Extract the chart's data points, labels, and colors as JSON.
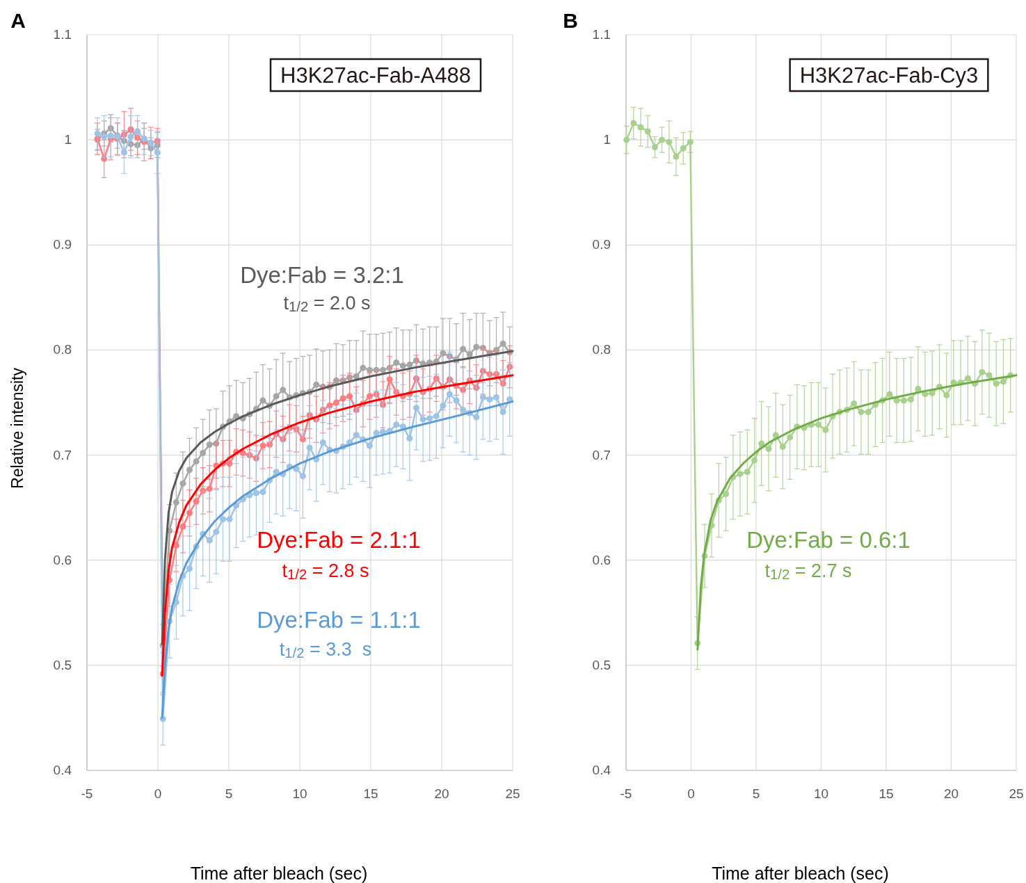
{
  "chart_data": [
    {
      "type": "line",
      "title": "H3K27ac-Fab-A488",
      "xlabel": "Time after bleach (sec)",
      "ylabel": "Relative intensity",
      "annotations": [
        "A",
        "t$_{1/2}$ = 2.0 s",
        "t$_{1/2}$ = 2.8 s",
        "t$_{1/2}$ = 3.3  s"
      ],
      "xlim": [
        -5,
        25
      ],
      "xticks": [
        -5,
        0,
        5,
        10,
        15,
        20,
        25
      ],
      "ylim": [
        0.4,
        1.1
      ],
      "yticks": [
        0.4,
        0.5,
        0.6,
        0.7,
        0.8,
        0.9,
        1,
        1.1
      ],
      "grid": true,
      "series": [
        {
          "color": "#a6a6a6",
          "marker": "circle",
          "x": [
            -4.26,
            -3.79,
            -3.32,
            -2.85,
            -2.38,
            -1.91,
            -1.44,
            -0.97,
            -0.5,
            -0.03,
            0.35,
            0.82,
            1.29,
            1.76,
            2.23,
            2.7,
            3.17,
            3.64,
            4.11,
            4.58,
            5.05,
            5.52,
            5.99,
            6.46,
            6.93,
            7.4,
            7.87,
            8.34,
            8.81,
            9.28,
            9.75,
            10.22,
            10.69,
            11.16,
            11.63,
            12.1,
            12.57,
            13.04,
            13.51,
            13.98,
            14.45,
            14.92,
            15.39,
            15.86,
            16.33,
            16.8,
            17.27,
            17.74,
            18.21,
            18.68,
            19.15,
            19.62,
            20.09,
            20.56,
            21.03,
            21.5,
            21.97,
            22.44,
            22.91,
            23.38,
            23.85,
            24.32,
            24.79
          ],
          "values": [
            1.0,
            1.006,
            1.011,
            1.004,
            0.999,
            0.996,
            0.995,
            1.001,
            0.992,
            0.995,
            0.519,
            0.628,
            0.655,
            0.673,
            0.686,
            0.694,
            0.702,
            0.71,
            0.711,
            0.727,
            0.732,
            0.737,
            0.735,
            0.739,
            0.744,
            0.752,
            0.747,
            0.756,
            0.762,
            0.755,
            0.757,
            0.759,
            0.76,
            0.767,
            0.765,
            0.765,
            0.771,
            0.771,
            0.774,
            0.775,
            0.783,
            0.781,
            0.781,
            0.781,
            0.783,
            0.788,
            0.785,
            0.786,
            0.79,
            0.787,
            0.788,
            0.789,
            0.797,
            0.794,
            0.791,
            0.801,
            0.796,
            0.803,
            0.802,
            0.797,
            0.8,
            0.806,
            0.798
          ],
          "errors": [
            0.01,
            0.012,
            0.013,
            0.012,
            0.01,
            0.011,
            0.012,
            0.01,
            0.01,
            0.012,
            0.02,
            0.025,
            0.028,
            0.03,
            0.03,
            0.032,
            0.032,
            0.033,
            0.033,
            0.034,
            0.034,
            0.034,
            0.034,
            0.034,
            0.035,
            0.034,
            0.035,
            0.035,
            0.035,
            0.034,
            0.035,
            0.035,
            0.035,
            0.034,
            0.034,
            0.035,
            0.035,
            0.034,
            0.035,
            0.034,
            0.035,
            0.034,
            0.034,
            0.035,
            0.034,
            0.033,
            0.034,
            0.033,
            0.034,
            0.033,
            0.034,
            0.033,
            0.033,
            0.036,
            0.034,
            0.034,
            0.033,
            0.032,
            0.033,
            0.031,
            0.031,
            0.03,
            0.024
          ]
        },
        {
          "color": "#ff7c80",
          "marker": "circle",
          "x": [
            -4.26,
            -3.79,
            -3.32,
            -2.85,
            -2.38,
            -1.91,
            -1.44,
            -0.97,
            -0.5,
            -0.03,
            0.35,
            0.82,
            1.29,
            1.76,
            2.23,
            2.7,
            3.17,
            3.64,
            4.11,
            4.58,
            5.05,
            5.52,
            5.99,
            6.46,
            6.93,
            7.4,
            7.87,
            8.34,
            8.81,
            9.28,
            9.75,
            10.22,
            10.69,
            11.16,
            11.63,
            12.1,
            12.57,
            13.04,
            13.51,
            13.98,
            14.45,
            14.92,
            15.39,
            15.86,
            16.33,
            16.8,
            17.27,
            17.74,
            18.21,
            18.68,
            19.15,
            19.62,
            20.09,
            20.56,
            21.03,
            21.5,
            21.97,
            22.44,
            22.91,
            23.38,
            23.85,
            24.32,
            24.79
          ],
          "values": [
            1.001,
            0.982,
            1.001,
            1.001,
            1.005,
            1.01,
            1.002,
            0.998,
            0.997,
            0.999,
            0.492,
            0.581,
            0.614,
            0.632,
            0.645,
            0.656,
            0.666,
            0.668,
            0.69,
            0.692,
            0.692,
            0.703,
            0.702,
            0.7,
            0.697,
            0.709,
            0.71,
            0.72,
            0.715,
            0.726,
            0.725,
            0.715,
            0.738,
            0.734,
            0.743,
            0.747,
            0.75,
            0.754,
            0.756,
            0.743,
            0.749,
            0.756,
            0.758,
            0.748,
            0.772,
            0.76,
            0.756,
            0.758,
            0.773,
            0.76,
            0.763,
            0.773,
            0.765,
            0.772,
            0.766,
            0.762,
            0.771,
            0.764,
            0.78,
            0.777,
            0.777,
            0.768,
            0.784
          ],
          "errors": [
            0.015,
            0.018,
            0.02,
            0.015,
            0.022,
            0.02,
            0.016,
            0.018,
            0.015,
            0.012,
            0.02,
            0.025,
            0.025,
            0.025,
            0.022,
            0.022,
            0.022,
            0.022,
            0.022,
            0.022,
            0.022,
            0.022,
            0.022,
            0.022,
            0.022,
            0.022,
            0.022,
            0.022,
            0.022,
            0.022,
            0.022,
            0.022,
            0.022,
            0.022,
            0.022,
            0.022,
            0.022,
            0.022,
            0.022,
            0.022,
            0.022,
            0.022,
            0.022,
            0.022,
            0.022,
            0.022,
            0.022,
            0.022,
            0.022,
            0.022,
            0.022,
            0.022,
            0.022,
            0.022,
            0.022,
            0.022,
            0.022,
            0.022,
            0.022,
            0.022,
            0.022,
            0.022,
            0.02
          ]
        },
        {
          "color": "#9dc3e6",
          "marker": "circle",
          "x": [
            -4.26,
            -3.79,
            -3.32,
            -2.85,
            -2.38,
            -1.91,
            -1.44,
            -0.97,
            -0.5,
            -0.03,
            0.35,
            0.82,
            1.29,
            1.76,
            2.23,
            2.7,
            3.17,
            3.64,
            4.11,
            4.58,
            5.05,
            5.52,
            5.99,
            6.46,
            6.93,
            7.4,
            7.87,
            8.34,
            8.81,
            9.28,
            9.75,
            10.22,
            10.69,
            11.16,
            11.63,
            12.1,
            12.57,
            13.04,
            13.51,
            13.98,
            14.45,
            14.92,
            15.39,
            15.86,
            16.33,
            16.8,
            17.27,
            17.74,
            18.21,
            18.68,
            19.15,
            19.62,
            20.09,
            20.56,
            21.03,
            21.5,
            21.97,
            22.44,
            22.91,
            23.38,
            23.85,
            24.32,
            24.79
          ],
          "values": [
            1.006,
            1.003,
            1.004,
            1.003,
            0.988,
            1.003,
            1.008,
            1.001,
            0.997,
            0.988,
            0.449,
            0.542,
            0.56,
            0.585,
            0.592,
            0.613,
            0.625,
            0.619,
            0.627,
            0.639,
            0.639,
            0.652,
            0.658,
            0.662,
            0.664,
            0.665,
            0.676,
            0.684,
            0.682,
            0.689,
            0.687,
            0.68,
            0.707,
            0.696,
            0.712,
            0.705,
            0.704,
            0.708,
            0.712,
            0.719,
            0.715,
            0.709,
            0.721,
            0.722,
            0.723,
            0.729,
            0.727,
            0.716,
            0.745,
            0.734,
            0.735,
            0.737,
            0.747,
            0.758,
            0.752,
            0.743,
            0.74,
            0.736,
            0.755,
            0.753,
            0.755,
            0.741,
            0.753
          ],
          "errors": [
            0.015,
            0.02,
            0.02,
            0.018,
            0.02,
            0.02,
            0.015,
            0.015,
            0.012,
            0.02,
            0.025,
            0.035,
            0.035,
            0.038,
            0.04,
            0.04,
            0.04,
            0.04,
            0.04,
            0.04,
            0.04,
            0.04,
            0.04,
            0.04,
            0.04,
            0.04,
            0.04,
            0.04,
            0.04,
            0.04,
            0.04,
            0.04,
            0.04,
            0.04,
            0.04,
            0.04,
            0.04,
            0.04,
            0.04,
            0.04,
            0.04,
            0.04,
            0.04,
            0.04,
            0.04,
            0.04,
            0.04,
            0.04,
            0.04,
            0.04,
            0.04,
            0.04,
            0.04,
            0.04,
            0.04,
            0.04,
            0.04,
            0.04,
            0.04,
            0.04,
            0.04,
            0.04,
            0.035
          ]
        },
        {
          "name": "Dye:Fab = 3.2:1",
          "color": "#595959",
          "marker": "none",
          "x": [
            0.3,
            0.5,
            0.75,
            1,
            1.5,
            2,
            3,
            4,
            5,
            6,
            8,
            10,
            12,
            15,
            18,
            21,
            25
          ],
          "values": [
            0.52,
            0.6,
            0.645,
            0.665,
            0.685,
            0.697,
            0.712,
            0.722,
            0.73,
            0.737,
            0.748,
            0.757,
            0.765,
            0.775,
            0.783,
            0.79,
            0.799
          ]
        },
        {
          "name": "Dye:Fab = 2.1:1",
          "color": "#ff0000",
          "marker": "none",
          "x": [
            0.3,
            0.5,
            0.75,
            1,
            1.5,
            2,
            3,
            4,
            5,
            6,
            8,
            10,
            12,
            15,
            18,
            21,
            25
          ],
          "values": [
            0.49,
            0.55,
            0.59,
            0.612,
            0.636,
            0.652,
            0.672,
            0.686,
            0.697,
            0.706,
            0.72,
            0.731,
            0.74,
            0.751,
            0.76,
            0.767,
            0.776
          ]
        },
        {
          "name": "Dye:Fab = 1.1:1",
          "color": "#5b9bd5",
          "marker": "none",
          "x": [
            0.3,
            0.5,
            0.75,
            1,
            1.5,
            2,
            3,
            4,
            5,
            6,
            8,
            10,
            12,
            15,
            18,
            21,
            25
          ],
          "values": [
            0.45,
            0.5,
            0.535,
            0.555,
            0.58,
            0.597,
            0.62,
            0.637,
            0.65,
            0.661,
            0.678,
            0.692,
            0.703,
            0.716,
            0.727,
            0.737,
            0.751
          ]
        }
      ]
    },
    {
      "type": "line",
      "title": "H3K27ac-Fab-Cy3",
      "xlabel": "Time after bleach (sec)",
      "annotations": [
        "B",
        "t$_{1/2}$ = 2.7 s"
      ],
      "xlim": [
        -5,
        25
      ],
      "xticks": [
        -5,
        0,
        5,
        10,
        15,
        20,
        25
      ],
      "ylim": [
        0.4,
        1.1
      ],
      "yticks": [
        0.4,
        0.5,
        0.6,
        0.7,
        0.8,
        0.9,
        1,
        1.1
      ],
      "grid": true,
      "series": [
        {
          "color": "#a9d18e",
          "marker": "circle",
          "x": [
            -4.96,
            -4.42,
            -3.87,
            -3.33,
            -2.78,
            -2.24,
            -1.69,
            -1.15,
            -0.6,
            -0.06,
            0.49,
            1.04,
            1.58,
            2.13,
            2.68,
            3.23,
            3.77,
            4.32,
            4.87,
            5.41,
            5.96,
            6.51,
            7.05,
            7.6,
            8.15,
            8.7,
            9.24,
            9.79,
            10.34,
            10.88,
            11.43,
            11.98,
            12.52,
            13.07,
            13.62,
            14.17,
            14.71,
            15.26,
            15.81,
            16.35,
            16.9,
            17.45,
            17.99,
            18.54,
            19.09,
            19.64,
            20.18,
            20.73,
            21.28,
            21.82,
            22.37,
            22.92,
            23.46,
            24.01,
            24.56
          ],
          "values": [
            1.0,
            1.016,
            1.012,
            1.008,
            0.993,
            1.0,
            0.998,
            0.984,
            0.992,
            0.998,
            0.521,
            0.604,
            0.633,
            0.657,
            0.663,
            0.679,
            0.682,
            0.684,
            0.695,
            0.711,
            0.706,
            0.719,
            0.708,
            0.717,
            0.727,
            0.726,
            0.729,
            0.729,
            0.724,
            0.737,
            0.741,
            0.743,
            0.749,
            0.741,
            0.741,
            0.748,
            0.752,
            0.758,
            0.752,
            0.752,
            0.753,
            0.763,
            0.758,
            0.759,
            0.765,
            0.757,
            0.769,
            0.769,
            0.773,
            0.768,
            0.779,
            0.776,
            0.768,
            0.77,
            0.776
          ],
          "errors": [
            0.013,
            0.015,
            0.018,
            0.015,
            0.01,
            0.012,
            0.02,
            0.018,
            0.015,
            0.01,
            0.025,
            0.03,
            0.03,
            0.035,
            0.035,
            0.04,
            0.04,
            0.04,
            0.04,
            0.04,
            0.04,
            0.04,
            0.04,
            0.04,
            0.04,
            0.04,
            0.04,
            0.04,
            0.04,
            0.04,
            0.04,
            0.04,
            0.04,
            0.04,
            0.04,
            0.04,
            0.04,
            0.04,
            0.04,
            0.04,
            0.04,
            0.04,
            0.04,
            0.04,
            0.04,
            0.04,
            0.04,
            0.04,
            0.04,
            0.04,
            0.04,
            0.04,
            0.04,
            0.04,
            0.035
          ]
        },
        {
          "name": "Dye:Fab = 0.6:1",
          "color": "#70ad47",
          "marker": "none",
          "x": [
            0.5,
            0.75,
            1,
            1.5,
            2,
            3,
            4,
            5,
            6,
            8,
            10,
            12,
            15,
            18,
            21,
            25
          ],
          "values": [
            0.515,
            0.575,
            0.605,
            0.638,
            0.656,
            0.678,
            0.692,
            0.703,
            0.712,
            0.725,
            0.735,
            0.743,
            0.753,
            0.761,
            0.768,
            0.776
          ]
        }
      ]
    }
  ]
}
